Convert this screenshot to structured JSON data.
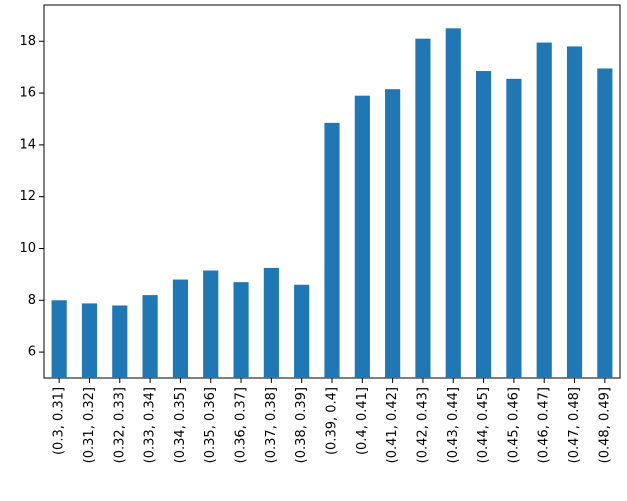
{
  "chart_data": {
    "type": "bar",
    "categories": [
      "(0.3, 0.31]",
      "(0.31, 0.32]",
      "(0.32, 0.33]",
      "(0.33, 0.34]",
      "(0.34, 0.35]",
      "(0.35, 0.36]",
      "(0.36, 0.37]",
      "(0.37, 0.38]",
      "(0.38, 0.39]",
      "(0.39, 0.4]",
      "(0.4, 0.41]",
      "(0.41, 0.42]",
      "(0.42, 0.43]",
      "(0.43, 0.44]",
      "(0.44, 0.45]",
      "(0.45, 0.46]",
      "(0.46, 0.47]",
      "(0.47, 0.48]",
      "(0.48, 0.49]"
    ],
    "values": [
      8.0,
      7.88,
      7.8,
      8.2,
      8.8,
      9.15,
      8.7,
      9.25,
      8.6,
      14.85,
      15.9,
      16.15,
      18.1,
      18.5,
      16.85,
      16.55,
      17.95,
      17.8,
      16.95
    ],
    "color": "#1f77b4",
    "ylim": [
      5,
      19.4
    ],
    "yticks": [
      6,
      8,
      10,
      12,
      14,
      16,
      18
    ],
    "grid": false
  }
}
